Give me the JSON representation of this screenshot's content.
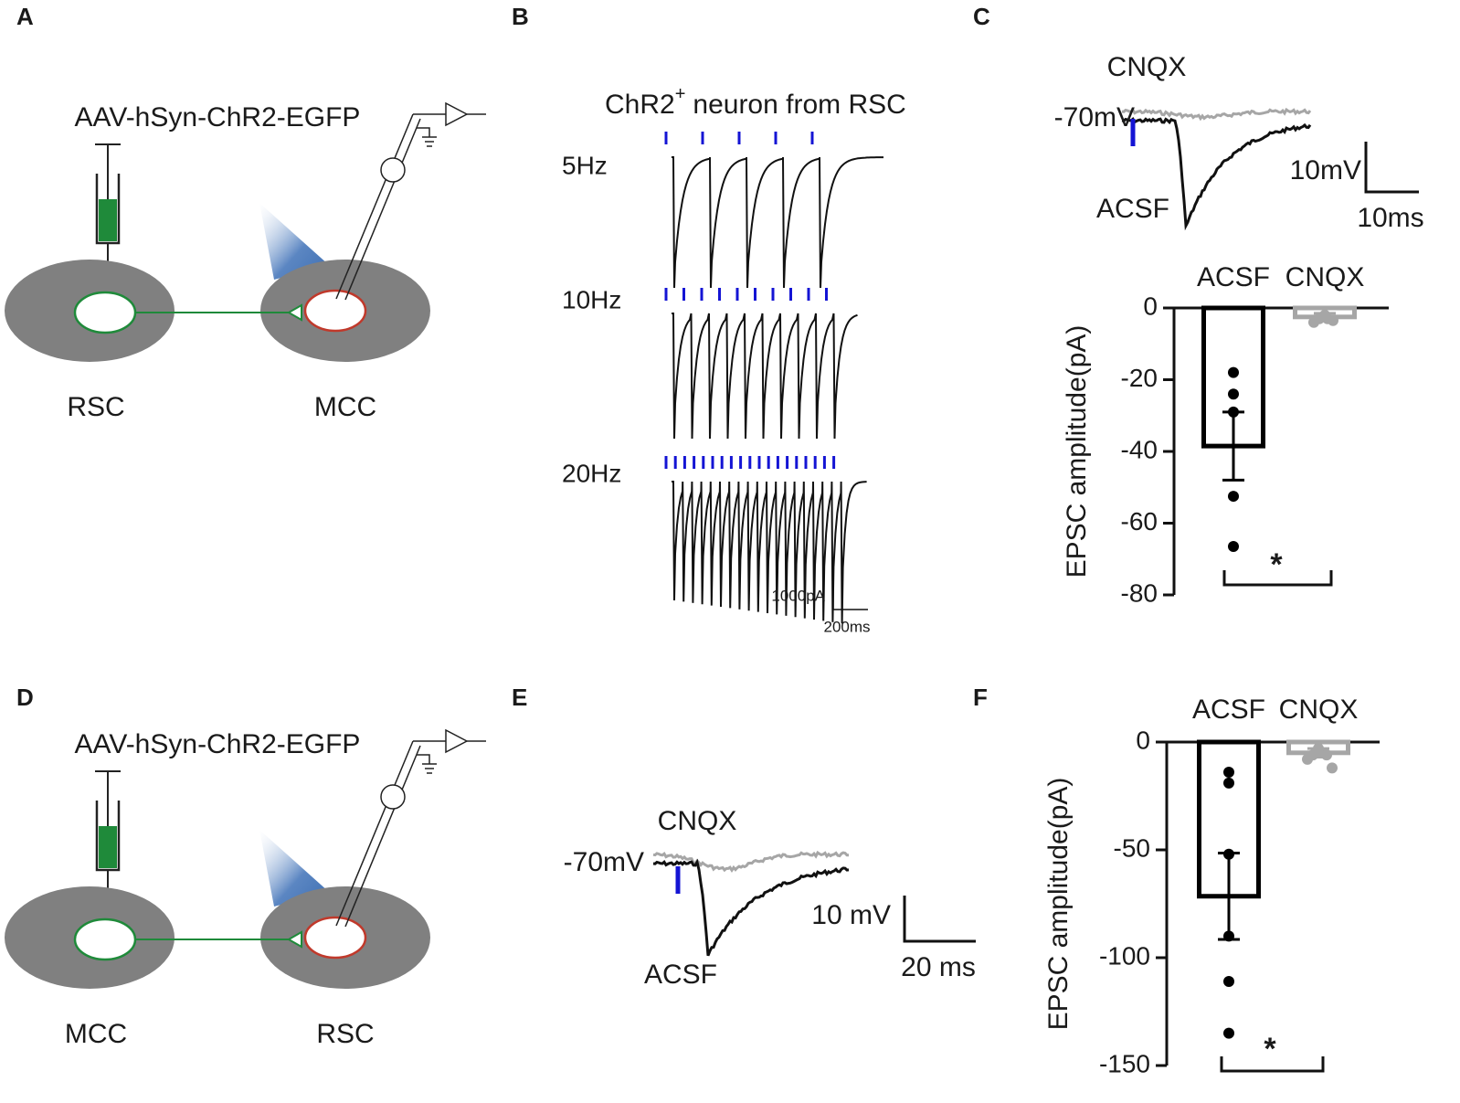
{
  "panels": {
    "labels": [
      "A",
      "B",
      "C",
      "D",
      "E",
      "F"
    ]
  },
  "panel_a": {
    "virus": "AAV-hSyn-ChR2-EGFP",
    "left_region": "RSC",
    "right_region": "MCC"
  },
  "panel_b": {
    "title": "ChR2",
    "title_sup": "+",
    "title_rest": "neuron from RSC",
    "rows": [
      "5Hz",
      "10Hz",
      "20Hz"
    ],
    "scale_y": "1000pA",
    "scale_x": "200ms"
  },
  "panel_c": {
    "drug": "CNQX",
    "holding": "-70mV",
    "control": "ACSF",
    "scale_y": "10mV",
    "scale_x": "10ms"
  },
  "panel_d": {
    "virus": "AAV-hSyn-ChR2-EGFP",
    "left_region": "MCC",
    "right_region": "RSC"
  },
  "panel_e": {
    "drug": "CNQX",
    "holding": "-70mV",
    "control": "ACSF",
    "scale_y": "10 mV",
    "scale_x": "20 ms"
  },
  "chart_data": [
    {
      "type": "bar",
      "y_label": "EPSC amplitude(pA)",
      "categories": [
        "ACSF",
        "CNQX"
      ],
      "values": [
        -38.5,
        -2.5
      ],
      "errors": [
        9.5,
        1
      ],
      "colors": [
        "#000000",
        "#a6a6a6"
      ],
      "points": [
        [
          -18,
          -24,
          -29,
          -52.5,
          -66.5
        ],
        [
          -2,
          -3,
          -3,
          -3.5,
          -4
        ]
      ],
      "ylim": [
        -80,
        0
      ],
      "yticks": [
        -80,
        -60,
        -40,
        -20,
        0
      ],
      "significance": "*"
    },
    {
      "type": "bar",
      "y_label": "EPSC amplitude(pA)",
      "categories": [
        "ACSF",
        "CNQX"
      ],
      "values": [
        -71.5,
        -5
      ],
      "errors": [
        20,
        2
      ],
      "colors": [
        "#000000",
        "#a6a6a6"
      ],
      "points": [
        [
          -14,
          -19,
          -52,
          -90,
          -111,
          -135
        ],
        [
          -3,
          -5,
          -6,
          -6,
          -8,
          -12
        ]
      ],
      "ylim": [
        -150,
        0
      ],
      "yticks": [
        -150,
        -100,
        -50,
        0
      ],
      "significance": "*"
    }
  ]
}
